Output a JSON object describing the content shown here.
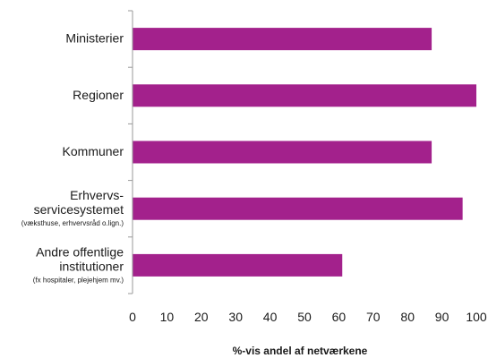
{
  "chart_data": {
    "type": "bar",
    "orientation": "horizontal",
    "categories": [
      {
        "lines": [
          "Ministerier"
        ],
        "note": ""
      },
      {
        "lines": [
          "Regioner"
        ],
        "note": ""
      },
      {
        "lines": [
          "Kommuner"
        ],
        "note": ""
      },
      {
        "lines": [
          "Erhvervs-",
          "servicesystemet"
        ],
        "note": "(væksthuse, erhvervsråd o.lign.)"
      },
      {
        "lines": [
          "Andre offentlige",
          "institutioner"
        ],
        "note": "(fx hospitaler, plejehjem mv.)"
      }
    ],
    "values": [
      87,
      100,
      87,
      96,
      61
    ],
    "xlabel": "%-vis andel af netværkene",
    "xlim": [
      0,
      100
    ],
    "xticks": [
      0,
      10,
      20,
      30,
      40,
      50,
      60,
      70,
      80,
      90,
      100
    ],
    "grid": false,
    "legend": "none",
    "bar_color": "#a3218c",
    "axis_color": "#9a9a9a"
  }
}
